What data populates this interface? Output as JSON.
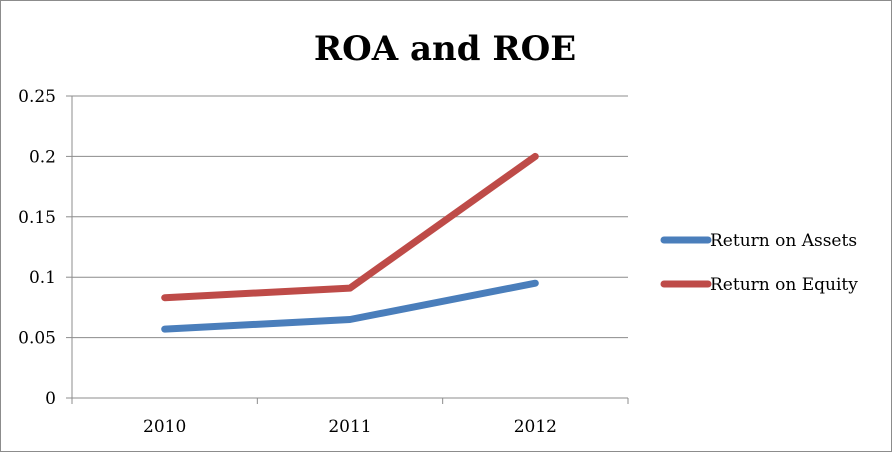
{
  "chart_data": {
    "type": "line",
    "title": "ROA and ROE",
    "categories": [
      "2010",
      "2011",
      "2012"
    ],
    "ylim": [
      0,
      0.25
    ],
    "yticks": [
      "0",
      "0.05",
      "0.1",
      "0.15",
      "0.2",
      "0.25"
    ],
    "grid": true,
    "legend_position": "right",
    "series": [
      {
        "name": "Return on Assets",
        "color": "#4a7ebb",
        "values": [
          0.057,
          0.065,
          0.095
        ]
      },
      {
        "name": "Return on Equity",
        "color": "#be4b48",
        "values": [
          0.083,
          0.091,
          0.2
        ]
      }
    ]
  }
}
